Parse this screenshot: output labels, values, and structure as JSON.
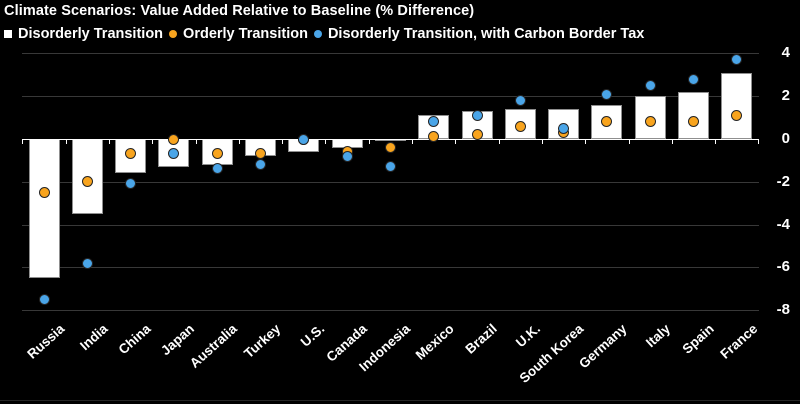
{
  "header": {
    "title": "Climate Scenarios: Value Added Relative to Baseline (% Difference)"
  },
  "chart_data": {
    "type": "bar",
    "title": "Climate Scenarios: Value Added Relative to Baseline (% Difference)",
    "categories": [
      "Russia",
      "India",
      "China",
      "Japan",
      "Australia",
      "Turkey",
      "U.S.",
      "Canada",
      "Indonesia",
      "Mexico",
      "Brazil",
      "U.K.",
      "South Korea",
      "Germany",
      "Italy",
      "Spain",
      "France"
    ],
    "series": [
      {
        "name": "Disorderly Transition",
        "marker": "square",
        "render": "bar",
        "color": "#ffffff",
        "values": [
          -6.5,
          -3.5,
          -1.6,
          -1.3,
          -1.2,
          -0.8,
          -0.6,
          -0.4,
          -0.1,
          1.1,
          1.3,
          1.4,
          1.4,
          1.6,
          2.0,
          2.2,
          3.1
        ]
      },
      {
        "name": "Orderly Transition",
        "marker": "circle",
        "render": "scatter",
        "color": "#f8a41e",
        "values": [
          -2.5,
          -2.0,
          -0.7,
          0.0,
          -0.7,
          -0.7,
          0.0,
          -0.6,
          -0.4,
          0.1,
          0.2,
          0.6,
          0.3,
          0.8,
          0.8,
          0.8,
          1.1
        ]
      },
      {
        "name": "Disorderly Transition, with Carbon Border Tax",
        "marker": "circle",
        "render": "scatter",
        "color": "#4aa5e8",
        "values": [
          -7.5,
          -5.8,
          -2.1,
          -0.7,
          -1.4,
          -1.2,
          0.0,
          -0.8,
          -1.3,
          0.8,
          1.1,
          1.8,
          0.5,
          2.1,
          2.5,
          2.8,
          3.7
        ]
      }
    ],
    "ylim": [
      -8,
      4
    ],
    "yticks": [
      4,
      2,
      0,
      -2,
      -4,
      -6,
      -8
    ],
    "xlabel": "",
    "ylabel": "",
    "grid": true,
    "legend_position": "top",
    "colors": {
      "background": "#000000",
      "grid": "#383838",
      "zero_axis": "#ffffff",
      "text": "#ffffff",
      "bar_fill": "#ffffff"
    }
  }
}
